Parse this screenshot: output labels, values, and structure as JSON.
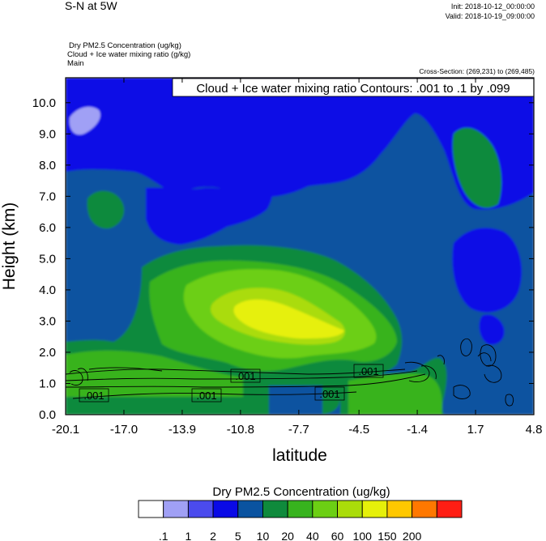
{
  "header": {
    "title": "S-N at 5W",
    "init": "Init: 2018-10-12_00:00:00",
    "valid": "Valid: 2018-10-19_09:00:00",
    "fields": [
      "Dry PM2.5 Concentration   (ug/kg)",
      "Cloud + Ice water mixing ratio   (g/kg)",
      "Main"
    ],
    "cross_section": "Cross-Section: (269,231) to (269,485)",
    "contour_info": "Cloud + Ice water mixing ratio Contours: .001 to .1 by .099"
  },
  "chart_data": {
    "type": "heatmap",
    "xlabel": "latitude",
    "ylabel": "Height (km)",
    "xlim": [
      -20.1,
      4.8
    ],
    "ylim": [
      0.0,
      10.8
    ],
    "x_ticks": [
      "-20.1",
      "-17.0",
      "-13.9",
      "-10.8",
      "-7.7",
      "-4.5",
      "-1.4",
      "1.7",
      "4.8"
    ],
    "y_ticks": [
      "0.0",
      "1.0",
      "2.0",
      "3.0",
      "4.0",
      "5.0",
      "6.0",
      "7.0",
      "8.0",
      "9.0",
      "10.0"
    ],
    "colorbar": {
      "title": "Dry PM2.5 Concentration  (ug/kg)",
      "labels": [
        ".1",
        "1",
        "2",
        "5",
        "10",
        "20",
        "40",
        "60",
        "100",
        "150",
        "200"
      ],
      "colors": [
        "#ffffff",
        "#a0a0f5",
        "#4b4bed",
        "#0a0ae6",
        "#0a53a0",
        "#0f8a3c",
        "#37b31e",
        "#6ccf14",
        "#aadc0a",
        "#e6f00a",
        "#ffc800",
        "#ff7800",
        "#ff1e14"
      ]
    },
    "contour_labels": [
      ".001",
      ".001",
      ".001",
      ".001",
      ".001"
    ],
    "contour_color": "#000000"
  }
}
